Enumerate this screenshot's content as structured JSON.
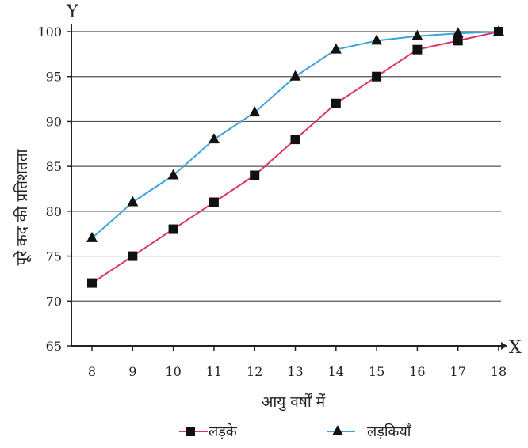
{
  "chart_data": {
    "type": "line",
    "title": "",
    "xlabel": "आयु वर्षों में",
    "ylabel": "पूरे कद की प्रतिशतता",
    "x_axis_letter": "X",
    "y_axis_letter": "Y",
    "x": [
      8,
      9,
      10,
      11,
      12,
      13,
      14,
      15,
      16,
      17,
      18
    ],
    "xlim": [
      8,
      18
    ],
    "ylim": [
      65,
      100
    ],
    "yticks": [
      65,
      70,
      75,
      80,
      85,
      90,
      95,
      100
    ],
    "grid": "horizontal",
    "legend_position": "bottom",
    "series": [
      {
        "name": "लड़के",
        "marker": "square",
        "color": "#d9346a",
        "values": [
          72,
          75,
          78,
          81,
          84,
          88,
          92,
          95,
          98,
          99,
          100
        ]
      },
      {
        "name": "लड़कियाँ",
        "marker": "triangle",
        "color": "#3aa3dc",
        "values": [
          77,
          81,
          84,
          88,
          91,
          95,
          98,
          99,
          99.5,
          99.8,
          100
        ]
      }
    ]
  }
}
